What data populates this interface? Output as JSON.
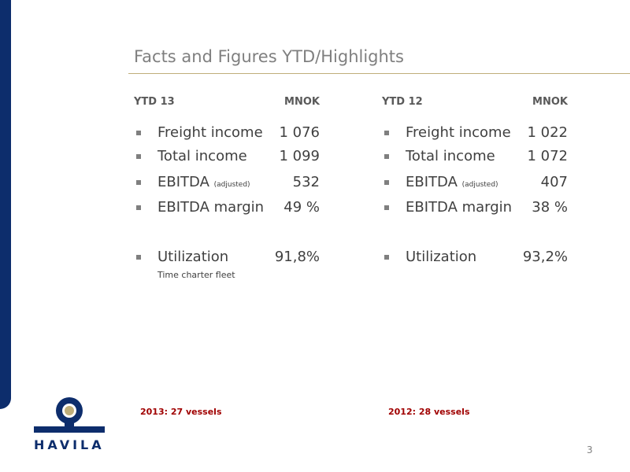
{
  "title": "Facts and Figures YTD/Highlights",
  "columns": [
    {
      "period": "YTD 13",
      "unit": "MNOK",
      "items": [
        {
          "label": "Freight income",
          "value": "1 076"
        },
        {
          "label": "Total income",
          "value": "1 099"
        },
        {
          "label": "EBITDA",
          "qualifier": "(adjusted)",
          "value": "532"
        },
        {
          "label": "EBITDA margin",
          "value": "49 %"
        },
        {
          "label": "Utilization",
          "value": "91,8%",
          "note": "Time charter fleet"
        }
      ],
      "footnote": "2013: 27 vessels"
    },
    {
      "period": "YTD 12",
      "unit": "MNOK",
      "items": [
        {
          "label": "Freight income",
          "value": "1 022"
        },
        {
          "label": "Total income",
          "value": "1 072"
        },
        {
          "label": "EBITDA",
          "qualifier": "(adjusted)",
          "value": "407"
        },
        {
          "label": "EBITDA margin",
          "value": "38 %"
        },
        {
          "label": "Utilization",
          "value": "93,2%"
        }
      ],
      "footnote": "2012: 28 vessels"
    }
  ],
  "logo": "HAVILA",
  "page_number": "3"
}
